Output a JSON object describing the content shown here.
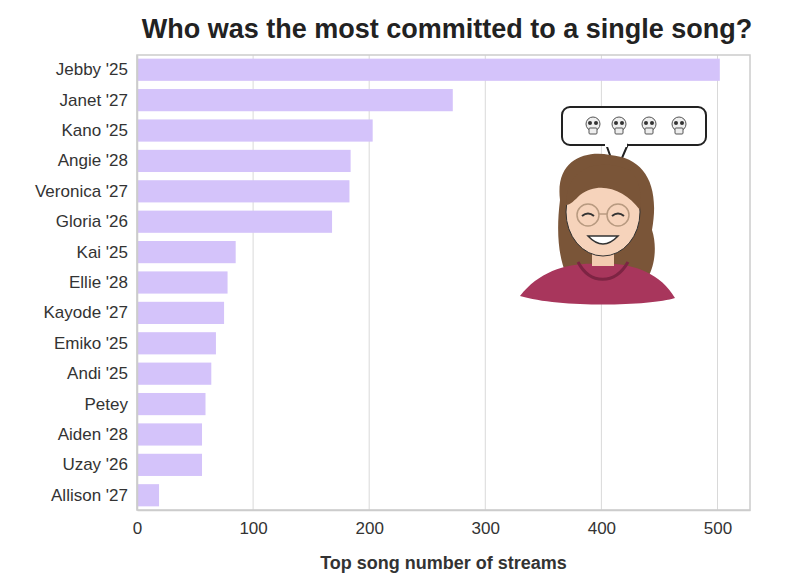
{
  "chart_data": {
    "type": "bar",
    "title": "Who was the most committed to a single song?",
    "xlabel": "Top song number of streams",
    "orientation": "horizontal",
    "categories": [
      "Jebby '25",
      "Janet '27",
      "Kano '25",
      "Angie '28",
      "Veronica '27",
      "Gloria '26",
      "Kai '25",
      "Ellie '28",
      "Kayode '27",
      "Emiko '25",
      "Andi '25",
      "Petey",
      "Aiden '28",
      "Uzay '26",
      "Allison '27"
    ],
    "values": [
      502,
      272,
      203,
      184,
      183,
      168,
      85,
      78,
      75,
      68,
      64,
      59,
      56,
      56,
      19
    ],
    "color": "#d4c3fa",
    "xlim": [
      0,
      528
    ],
    "xticks": [
      0,
      100,
      200,
      300,
      400,
      500
    ],
    "grid": true
  }
}
